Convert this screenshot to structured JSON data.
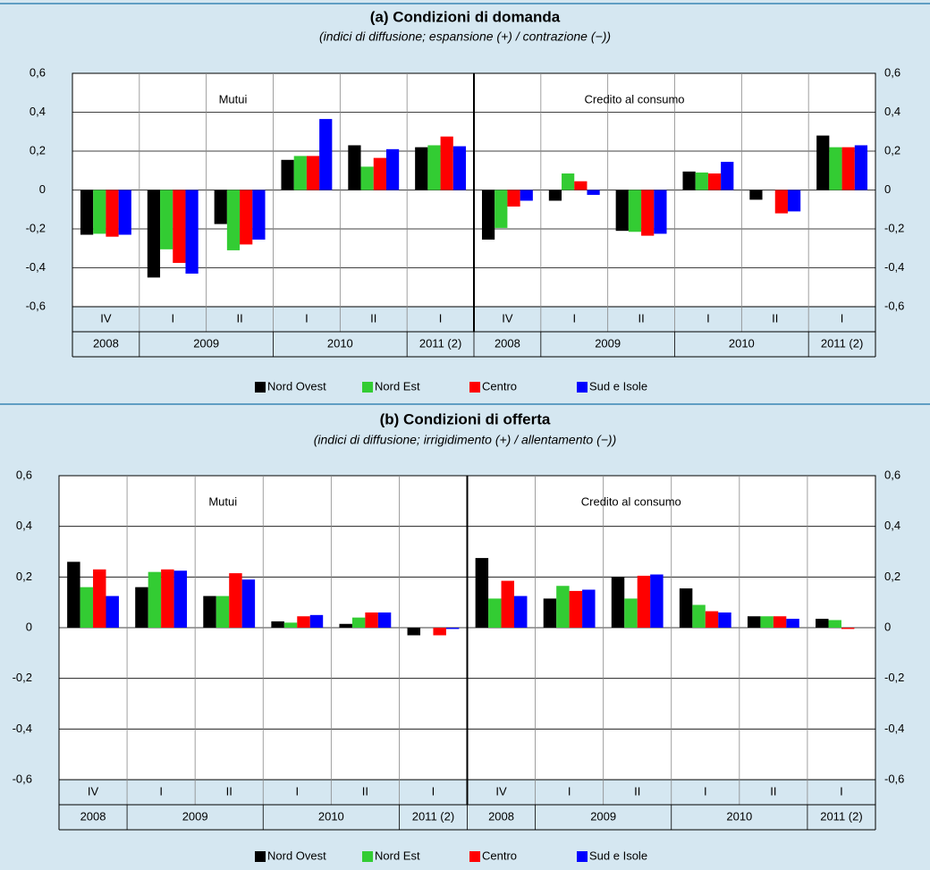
{
  "chart_data": [
    {
      "type": "bar",
      "title": "(a) Condizioni di domanda",
      "subtitle": "(indici di diffusione; espansione (+) / contrazione (−))",
      "sections": [
        "Mutui",
        "Credito al consumo"
      ],
      "categories": [
        "IV",
        "I",
        "II",
        "I",
        "II",
        "I",
        "IV",
        "I",
        "II",
        "I",
        "II",
        "I"
      ],
      "years": [
        "2008",
        "2009",
        null,
        "2010",
        null,
        "2011 (2)",
        "2008",
        "2009",
        null,
        "2010",
        null,
        "2011 (2)"
      ],
      "series": [
        {
          "name": "Nord Ovest",
          "color": "#000000",
          "values": [
            -0.23,
            -0.45,
            -0.175,
            0.155,
            0.23,
            0.22,
            -0.255,
            -0.055,
            -0.21,
            0.095,
            -0.05,
            0.28
          ]
        },
        {
          "name": "Nord Est",
          "color": "#33cc33",
          "values": [
            -0.225,
            -0.305,
            -0.31,
            0.175,
            0.12,
            0.23,
            -0.195,
            0.085,
            -0.215,
            0.09,
            0.0,
            0.22
          ]
        },
        {
          "name": "Centro",
          "color": "#ff0000",
          "values": [
            -0.24,
            -0.375,
            -0.28,
            0.175,
            0.165,
            0.275,
            -0.085,
            0.045,
            -0.235,
            0.085,
            -0.12,
            0.22
          ]
        },
        {
          "name": "Sud e Isole",
          "color": "#0000ff",
          "values": [
            -0.23,
            -0.43,
            -0.255,
            0.365,
            0.21,
            0.225,
            -0.055,
            -0.025,
            -0.225,
            0.145,
            -0.11,
            0.23
          ]
        }
      ],
      "ylim": [
        -0.6,
        0.6
      ],
      "yticks": [
        {
          "value": -0.6,
          "label": "-0,6"
        },
        {
          "value": -0.4,
          "label": "-0,4"
        },
        {
          "value": -0.2,
          "label": "-0,2"
        },
        0,
        {
          "value": 0.2,
          "label": "0,2"
        },
        {
          "value": 0.4,
          "label": "0,4"
        },
        {
          "value": 0.6,
          "label": "0,6"
        }
      ],
      "grid": true
    },
    {
      "type": "bar",
      "title": "(b) Condizioni di offerta",
      "subtitle": "(indici di diffusione; irrigidimento (+) / allentamento (−))",
      "sections": [
        "Mutui",
        "Credito al consumo"
      ],
      "categories": [
        "IV",
        "I",
        "II",
        "I",
        "II",
        "I",
        "IV",
        "I",
        "II",
        "I",
        "II",
        "I"
      ],
      "years": [
        "2008",
        "2009",
        null,
        "2010",
        null,
        "2011 (2)",
        "2008",
        "2009",
        null,
        "2010",
        null,
        "2011 (2)"
      ],
      "series": [
        {
          "name": "Nord Ovest",
          "color": "#000000",
          "values": [
            0.26,
            0.16,
            0.125,
            0.025,
            0.015,
            -0.03,
            0.275,
            0.115,
            0.2,
            0.155,
            0.045,
            0.035
          ]
        },
        {
          "name": "Nord Est",
          "color": "#33cc33",
          "values": [
            0.16,
            0.22,
            0.125,
            0.02,
            0.04,
            0.0,
            0.115,
            0.165,
            0.115,
            0.09,
            0.045,
            0.03
          ]
        },
        {
          "name": "Centro",
          "color": "#ff0000",
          "values": [
            0.23,
            0.23,
            0.215,
            0.045,
            0.06,
            -0.03,
            0.185,
            0.145,
            0.205,
            0.065,
            0.045,
            -0.005
          ]
        },
        {
          "name": "Sud e Isole",
          "color": "#0000ff",
          "values": [
            0.125,
            0.225,
            0.19,
            0.05,
            0.06,
            -0.005,
            0.125,
            0.15,
            0.21,
            0.06,
            0.035,
            0.0
          ]
        }
      ],
      "ylim": [
        -0.6,
        0.6
      ],
      "yticks": [
        {
          "value": -0.6,
          "label": "-0,6"
        },
        {
          "value": -0.4,
          "label": "-0,4"
        },
        {
          "value": -0.2,
          "label": "-0,2"
        },
        0,
        {
          "value": 0.2,
          "label": "0,2"
        },
        {
          "value": 0.4,
          "label": "0,4"
        },
        {
          "value": 0.6,
          "label": "0,6"
        }
      ],
      "grid": true
    }
  ]
}
